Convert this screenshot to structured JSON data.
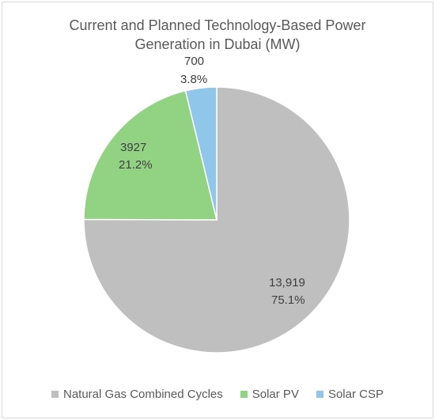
{
  "chart_data": {
    "type": "pie",
    "title_line1": "Current and Planned Technology-Based Power",
    "title_line2": "Generation in Dubai (MW)",
    "categories": [
      "Natural Gas Combined Cycles",
      "Solar PV",
      "Solar CSP"
    ],
    "values": [
      13919,
      3927,
      700
    ],
    "value_labels": [
      "13,919",
      "3927",
      "700"
    ],
    "percent_labels": [
      "75.1%",
      "21.2%",
      "3.8%"
    ],
    "colors": [
      "#bfbfbf",
      "#92d283",
      "#8fc6ea"
    ],
    "legend_position": "bottom"
  }
}
